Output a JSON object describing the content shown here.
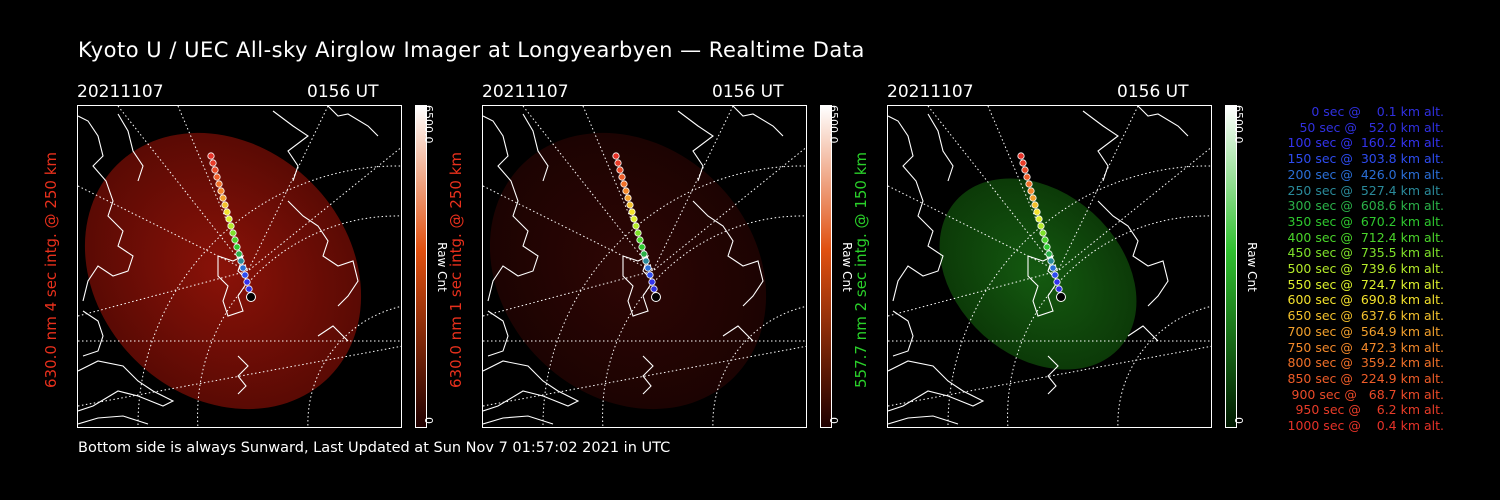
{
  "title": "Kyoto U / UEC All-sky Airglow Imager at Longyearbyen — Realtime Data",
  "footer": "Bottom side is always Sunward, Last Updated at Sun Nov  7 01:57:02 2021 in UTC",
  "panels": [
    {
      "date": "20211107",
      "time": "0156 UT",
      "ylabel": "630.0 nm 4 sec intg. @ 250 km",
      "label_color": "#e8301c",
      "colorbar_max": "6500.0",
      "colorbar_min": "0",
      "colorbar_unit": "Raw Cnt",
      "image_tone": "red-bright",
      "colors": {
        "glow": "#8a1208",
        "edge": "#5a0a04",
        "bar_top": "#ffffff",
        "bar_mid": "#e05010",
        "bar_bottom": "#200000"
      }
    },
    {
      "date": "20211107",
      "time": "0156 UT",
      "ylabel": "630.0 nm 1 sec intg. @ 250 km",
      "label_color": "#e8301c",
      "colorbar_max": "6500.0",
      "colorbar_min": "0",
      "colorbar_unit": "Raw Cnt",
      "image_tone": "red-dim",
      "colors": {
        "glow": "#2e0604",
        "edge": "#1c0302",
        "bar_top": "#ffffff",
        "bar_mid": "#e05010",
        "bar_bottom": "#200000"
      }
    },
    {
      "date": "20211107",
      "time": "0156 UT",
      "ylabel": "557.7 nm 2 sec intg. @ 150 km",
      "label_color": "#2ad02a",
      "colorbar_max": "6500.0",
      "colorbar_min": "0",
      "colorbar_unit": "Raw Cnt",
      "image_tone": "green",
      "colors": {
        "glow": "#145a10",
        "edge": "#0c3a08",
        "bar_top": "#ffffff",
        "bar_mid": "#30c030",
        "bar_bottom": "#001800"
      }
    }
  ],
  "legend": [
    {
      "text": "   0 sec @    0.1 km alt.",
      "color": "#3030e0"
    },
    {
      "text": "  50 sec @   52.0 km alt.",
      "color": "#3030e0"
    },
    {
      "text": " 100 sec @  160.2 km alt.",
      "color": "#3333ee"
    },
    {
      "text": " 150 sec @  303.8 km alt.",
      "color": "#2e4cf0"
    },
    {
      "text": " 200 sec @  426.0 km alt.",
      "color": "#2a6ed6"
    },
    {
      "text": " 250 sec @  527.4 km alt.",
      "color": "#2a8a9a"
    },
    {
      "text": " 300 sec @  608.6 km alt.",
      "color": "#2ab048"
    },
    {
      "text": " 350 sec @  670.2 km alt.",
      "color": "#2ec82e"
    },
    {
      "text": " 400 sec @  712.4 km alt.",
      "color": "#4ad42a"
    },
    {
      "text": " 450 sec @  735.5 km alt.",
      "color": "#7ee02a"
    },
    {
      "text": " 500 sec @  739.6 km alt.",
      "color": "#b4ea2a"
    },
    {
      "text": " 550 sec @  724.7 km alt.",
      "color": "#dcef2c"
    },
    {
      "text": " 600 sec @  690.8 km alt.",
      "color": "#f2e02c"
    },
    {
      "text": " 650 sec @  637.6 km alt.",
      "color": "#f2c02c"
    },
    {
      "text": " 700 sec @  564.9 km alt.",
      "color": "#f2a02c"
    },
    {
      "text": " 750 sec @  472.3 km alt.",
      "color": "#f2882a"
    },
    {
      "text": " 800 sec @  359.2 km alt.",
      "color": "#f07028"
    },
    {
      "text": " 850 sec @  224.9 km alt.",
      "color": "#ee5c28"
    },
    {
      "text": " 900 sec @   68.7 km alt.",
      "color": "#ea4a28"
    },
    {
      "text": " 950 sec @    6.2 km alt.",
      "color": "#e83c28"
    },
    {
      "text": "1000 sec @    0.4 km alt.",
      "color": "#e63228"
    }
  ]
}
